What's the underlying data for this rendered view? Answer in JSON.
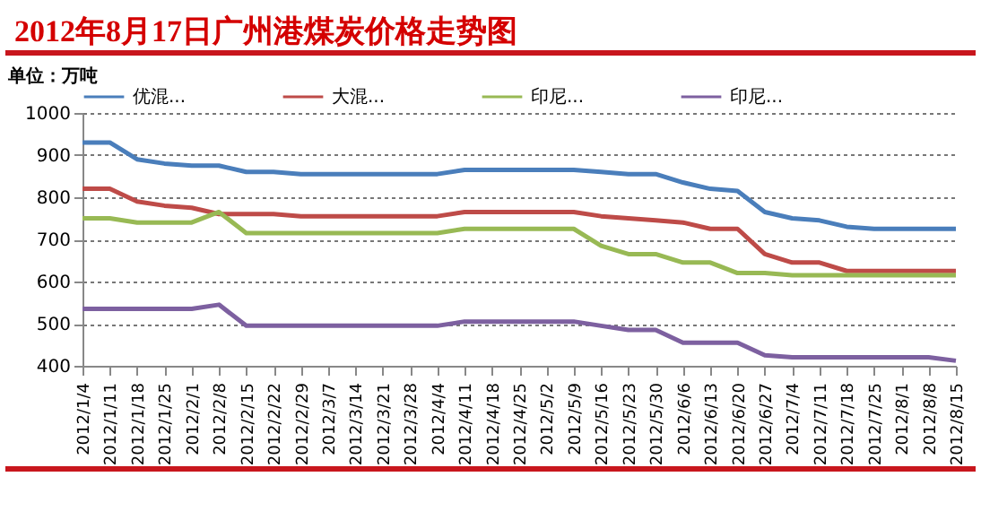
{
  "chart_data": {
    "type": "line",
    "title": "2012年8月17日广州港煤炭价格走势图",
    "ylabel": "单位：万吨",
    "categories": [
      "2012/1/4",
      "2012/1/11",
      "2012/1/18",
      "2012/1/25",
      "2012/2/1",
      "2012/2/8",
      "2012/2/15",
      "2012/2/22",
      "2012/2/29",
      "2012/3/7",
      "2012/3/14",
      "2012/3/21",
      "2012/3/28",
      "2012/4/4",
      "2012/4/11",
      "2012/4/18",
      "2012/4/25",
      "2012/5/2",
      "2012/5/9",
      "2012/5/16",
      "2012/5/23",
      "2012/5/30",
      "2012/6/6",
      "2012/6/13",
      "2012/6/20",
      "2012/6/27",
      "2012/7/4",
      "2012/7/11",
      "2012/7/18",
      "2012/7/25",
      "2012/8/1",
      "2012/8/8",
      "2012/8/15"
    ],
    "series": [
      {
        "name": "优混...",
        "color": "#4a7ebb",
        "values": [
          930,
          930,
          890,
          880,
          875,
          875,
          860,
          860,
          855,
          855,
          855,
          855,
          855,
          855,
          865,
          865,
          865,
          865,
          865,
          860,
          855,
          855,
          835,
          820,
          815,
          765,
          750,
          745,
          730,
          725,
          725,
          725,
          725
        ]
      },
      {
        "name": "大混...",
        "color": "#be4b48",
        "values": [
          820,
          820,
          790,
          780,
          775,
          760,
          760,
          760,
          755,
          755,
          755,
          755,
          755,
          755,
          765,
          765,
          765,
          765,
          765,
          755,
          750,
          745,
          740,
          725,
          725,
          665,
          645,
          645,
          625,
          625,
          625,
          625,
          625
        ]
      },
      {
        "name": "印尼...",
        "color": "#98b954",
        "values": [
          750,
          750,
          740,
          740,
          740,
          765,
          715,
          715,
          715,
          715,
          715,
          715,
          715,
          715,
          725,
          725,
          725,
          725,
          725,
          685,
          665,
          665,
          645,
          645,
          620,
          620,
          615,
          615,
          615,
          615,
          615,
          615,
          615
        ]
      },
      {
        "name": "印尼...",
        "color": "#7d60a0",
        "values": [
          535,
          535,
          535,
          535,
          535,
          545,
          495,
          495,
          495,
          495,
          495,
          495,
          495,
          495,
          505,
          505,
          505,
          505,
          505,
          495,
          485,
          485,
          455,
          455,
          455,
          425,
          420,
          420,
          420,
          420,
          420,
          420,
          412
        ]
      }
    ],
    "ylim": [
      400,
      1000
    ],
    "yticks": [
      400,
      500,
      600,
      700,
      800,
      900,
      1000
    ],
    "grid": "y",
    "legend": "top",
    "marker": "none",
    "line_style": "solid"
  }
}
